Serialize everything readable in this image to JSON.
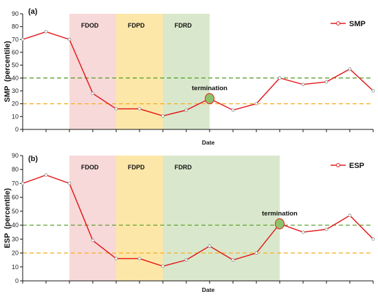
{
  "chart_data": [
    {
      "type": "line",
      "panel_label": "(a)",
      "xlabel": "Date",
      "ylabel": "SMP  (percentile)",
      "ylim": [
        0,
        90
      ],
      "yticks": [
        0,
        10,
        20,
        30,
        40,
        50,
        60,
        70,
        80,
        90
      ],
      "x": [
        1,
        2,
        3,
        4,
        5,
        6,
        7,
        8,
        9,
        10,
        11,
        12,
        13,
        14,
        15,
        16
      ],
      "series": [
        {
          "name": "SMP",
          "color": "#e31a1c",
          "values": [
            70,
            76,
            70,
            28,
            16,
            16,
            10.5,
            15,
            24,
            15,
            20,
            40,
            35,
            37,
            47,
            30
          ]
        }
      ],
      "phases": [
        {
          "label": "FDOD",
          "x_start": 3,
          "x_end": 5,
          "color": "#f8d9d9"
        },
        {
          "label": "FDPD",
          "x_start": 5,
          "x_end": 7,
          "color": "#fde7a8"
        },
        {
          "label": "FDRD",
          "x_start": 7,
          "x_end": 9,
          "color": "#d9e8cc"
        }
      ],
      "reference_lines": [
        {
          "y": 40,
          "color": "#5aa02c"
        },
        {
          "y": 20,
          "color": "#f5b02a"
        }
      ],
      "annotation": {
        "text": "termination",
        "x": 9,
        "y": 24
      },
      "legend": "top-right",
      "grid": false
    },
    {
      "type": "line",
      "panel_label": "(b)",
      "xlabel": "Date",
      "ylabel": "ESP  (percentile)",
      "ylim": [
        0,
        90
      ],
      "yticks": [
        0,
        10,
        20,
        30,
        40,
        50,
        60,
        70,
        80,
        90
      ],
      "x": [
        1,
        2,
        3,
        4,
        5,
        6,
        7,
        8,
        9,
        10,
        11,
        12,
        13,
        14,
        15,
        16
      ],
      "series": [
        {
          "name": "ESP",
          "color": "#e31a1c",
          "values": [
            70,
            76,
            70,
            29,
            16,
            16,
            10.5,
            15,
            25,
            15,
            20,
            41,
            35,
            37,
            47,
            30
          ]
        }
      ],
      "phases": [
        {
          "label": "FDOD",
          "x_start": 3,
          "x_end": 5,
          "color": "#f8d9d9"
        },
        {
          "label": "FDPD",
          "x_start": 5,
          "x_end": 7,
          "color": "#fde7a8"
        },
        {
          "label": "FDRD",
          "x_start": 7,
          "x_end": 12,
          "color": "#d9e8cc"
        }
      ],
      "reference_lines": [
        {
          "y": 40,
          "color": "#5aa02c"
        },
        {
          "y": 20,
          "color": "#f5b02a"
        }
      ],
      "annotation": {
        "text": "termination",
        "x": 12,
        "y": 41
      },
      "legend": "top-right",
      "grid": false
    }
  ]
}
